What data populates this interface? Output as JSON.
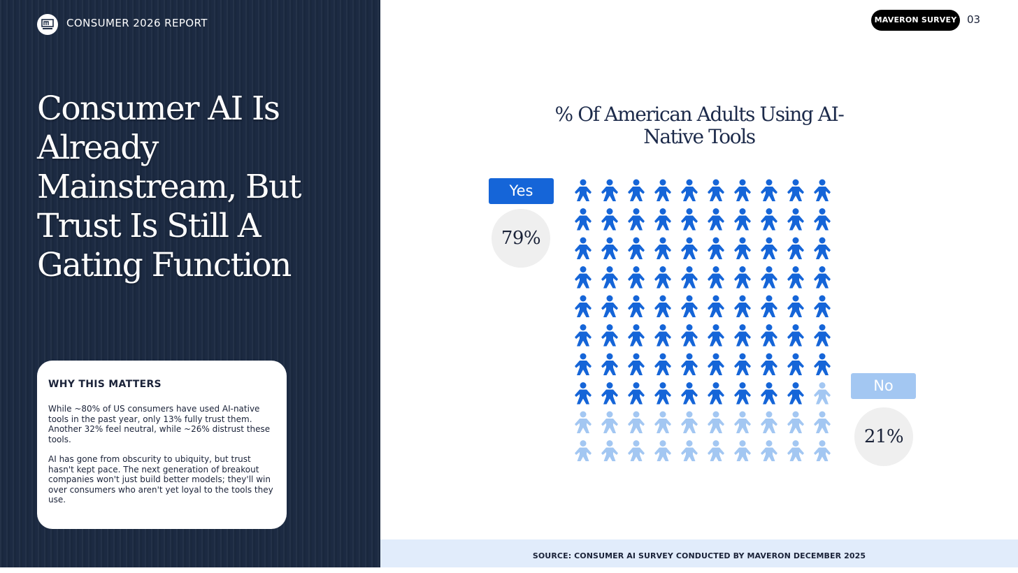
{
  "header": {
    "report_title": "CONSUMER 2026 REPORT",
    "survey_badge": "MAVERON SURVEY",
    "page_number": "03"
  },
  "left_panel": {
    "headline": "Consumer AI Is Already Mainstream, But Trust Is Still A Gating Function",
    "card": {
      "title": "WHY THIS MATTERS",
      "paragraph_1": "While ~80% of US consumers have used AI-native tools in the past year, only 13% fully trust them. Another 32% feel neutral, while ~26% distrust these tools.",
      "paragraph_2": "AI has gone from obscurity to ubiquity, but trust hasn't kept pace. The next generation of breakout companies won't just build better models; they'll win over consumers who aren't yet loyal to the tools they use."
    }
  },
  "chart_data": {
    "type": "pictogram",
    "title": "% Of American Adults Using AI-Native Tools",
    "categories": [
      "Yes",
      "No"
    ],
    "values": [
      79,
      21
    ],
    "value_labels": [
      "79%",
      "21%"
    ],
    "grid": {
      "rows": 10,
      "cols": 10
    },
    "colors": {
      "Yes": "#1565d8",
      "No": "#a3c7f2"
    }
  },
  "footer": {
    "source": "SOURCE: CONSUMER AI SURVEY CONDUCTED BY MAVERON DECEMBER 2025"
  },
  "colors": {
    "left_panel_bg": "#1c2a42",
    "accent_blue": "#1565d8",
    "light_blue": "#a3c7f2",
    "source_bar_bg": "#e1ecfb"
  }
}
